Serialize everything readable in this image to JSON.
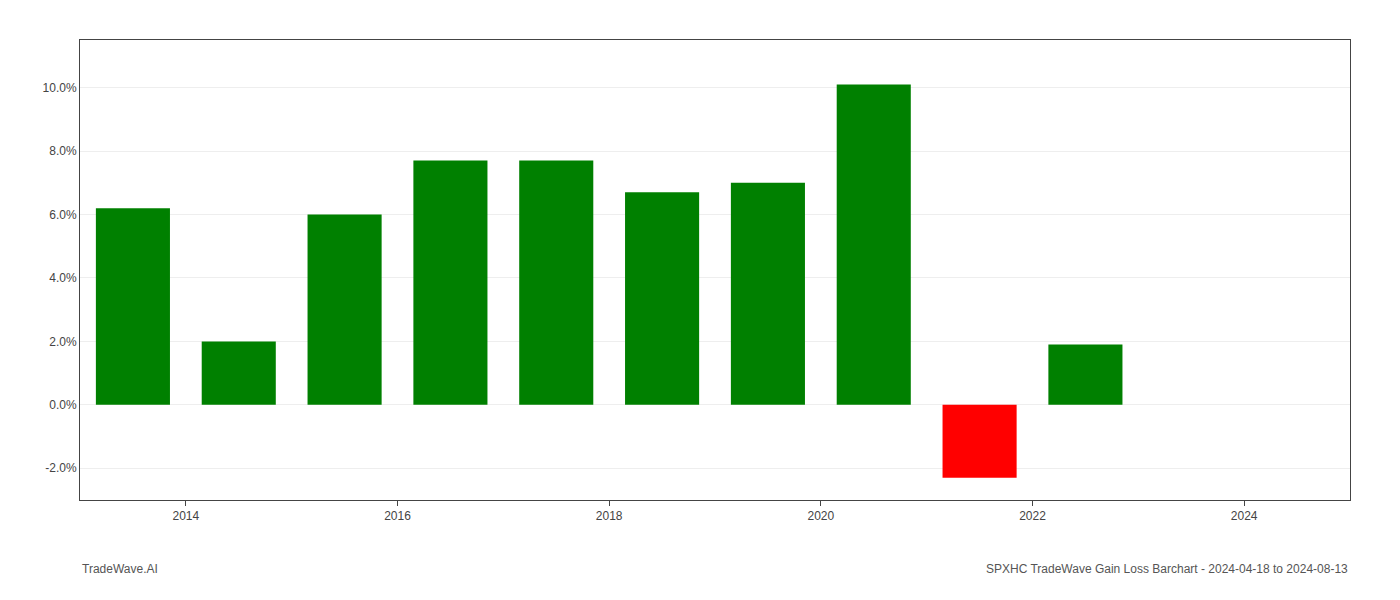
{
  "chart_data": {
    "type": "bar",
    "x": [
      2013.5,
      2014.5,
      2015.5,
      2016.5,
      2017.5,
      2018.5,
      2019.5,
      2020.5,
      2021.5,
      2022.5
    ],
    "values": [
      0.062,
      0.02,
      0.06,
      0.077,
      0.077,
      0.067,
      0.07,
      0.101,
      -0.023,
      0.019
    ],
    "colors": [
      "#008000",
      "#008000",
      "#008000",
      "#008000",
      "#008000",
      "#008000",
      "#008000",
      "#008000",
      "#ff0000",
      "#008000"
    ],
    "xlim": [
      2013.0,
      2025.0
    ],
    "xticks": [
      2014,
      2016,
      2018,
      2020,
      2022,
      2024
    ],
    "ylim": [
      -0.03,
      0.115
    ],
    "yticks": [
      {
        "value": -0.02,
        "label": "-2.0%"
      },
      {
        "value": 0.0,
        "label": "0.0%"
      },
      {
        "value": 0.02,
        "label": "2.0%"
      },
      {
        "value": 0.04,
        "label": "4.0%"
      },
      {
        "value": 0.06,
        "label": "6.0%"
      },
      {
        "value": 0.08,
        "label": "8.0%"
      },
      {
        "value": 0.1,
        "label": "10.0%"
      }
    ],
    "grid": true,
    "annotations": [
      "TradeWave.AI",
      "SPXHC TradeWave Gain Loss Barchart - 2024-04-18 to 2024-08-13"
    ]
  }
}
